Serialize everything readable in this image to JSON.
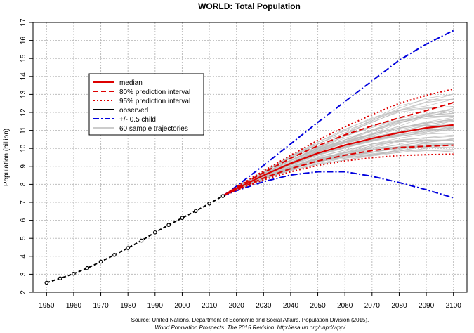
{
  "chart_data": {
    "type": "line",
    "title": "WORLD: Total Population",
    "xlabel": "",
    "ylabel": "Population (billion)",
    "xlim": [
      1945,
      2105
    ],
    "ylim": [
      2,
      17
    ],
    "x_ticks": [
      "1950",
      "1960",
      "1970",
      "1980",
      "1990",
      "2000",
      "2010",
      "2020",
      "2030",
      "2040",
      "2050",
      "2060",
      "2070",
      "2080",
      "2090",
      "2100"
    ],
    "y_ticks": [
      "2",
      "3",
      "4",
      "5",
      "6",
      "7",
      "8",
      "9",
      "10",
      "11",
      "12",
      "13",
      "14",
      "15",
      "16",
      "17"
    ],
    "grid": true,
    "legend_position": "top-left",
    "legend": [
      "median",
      "80% prediction interval",
      "95% prediction interval",
      "observed",
      "+/- 0.5 child",
      "60 sample trajectories"
    ],
    "series": [
      {
        "name": "observed",
        "x": [
          1950,
          1955,
          1960,
          1965,
          1970,
          1975,
          1980,
          1985,
          1990,
          1995,
          2000,
          2005,
          2010,
          2015
        ],
        "y": [
          2.53,
          2.77,
          3.03,
          3.34,
          3.7,
          4.08,
          4.46,
          4.87,
          5.33,
          5.74,
          6.13,
          6.52,
          6.93,
          7.35
        ]
      },
      {
        "name": "median",
        "x": [
          2015,
          2020,
          2030,
          2040,
          2050,
          2060,
          2070,
          2080,
          2090,
          2100
        ],
        "y": [
          7.35,
          7.76,
          8.5,
          9.16,
          9.73,
          10.18,
          10.55,
          10.87,
          11.14,
          11.3
        ]
      },
      {
        "name": "80% prediction interval",
        "x": [
          2015,
          2020,
          2030,
          2040,
          2050,
          2060,
          2070,
          2080,
          2090,
          2100
        ],
        "lower": [
          7.35,
          7.7,
          8.35,
          8.87,
          9.3,
          9.62,
          9.88,
          10.05,
          10.12,
          10.18
        ],
        "upper": [
          7.35,
          7.82,
          8.65,
          9.45,
          10.15,
          10.75,
          11.25,
          11.7,
          12.1,
          12.55
        ]
      },
      {
        "name": "95% prediction interval",
        "x": [
          2015,
          2020,
          2030,
          2040,
          2050,
          2060,
          2070,
          2080,
          2090,
          2100
        ],
        "lower": [
          7.35,
          7.67,
          8.25,
          8.7,
          9.05,
          9.3,
          9.48,
          9.6,
          9.65,
          9.68
        ],
        "upper": [
          7.35,
          7.85,
          8.75,
          9.62,
          10.45,
          11.2,
          11.88,
          12.5,
          12.95,
          13.3
        ]
      },
      {
        "name": "+/- 0.5 child",
        "x": [
          2015,
          2020,
          2030,
          2040,
          2050,
          2060,
          2070,
          2080,
          2090,
          2100
        ],
        "lower": [
          7.35,
          7.65,
          8.15,
          8.52,
          8.7,
          8.7,
          8.45,
          8.1,
          7.7,
          7.25
        ],
        "upper": [
          7.35,
          7.9,
          9.05,
          10.25,
          11.45,
          12.6,
          13.75,
          14.9,
          15.8,
          16.55
        ]
      }
    ],
    "sample_trajectories_count": 60
  },
  "footer": {
    "source": "Source: United Nations, Department of Economic and Social Affairs, Population Division (2015).",
    "reference": "World Population Prospects: The 2015 Revision. http://esa.un.org/unpd/wpp/"
  },
  "colors": {
    "median": "#dd0000",
    "observed": "#000000",
    "child": "#0000dd",
    "trajectories": "#bbbbbb",
    "grid": "#bdbdbd"
  }
}
